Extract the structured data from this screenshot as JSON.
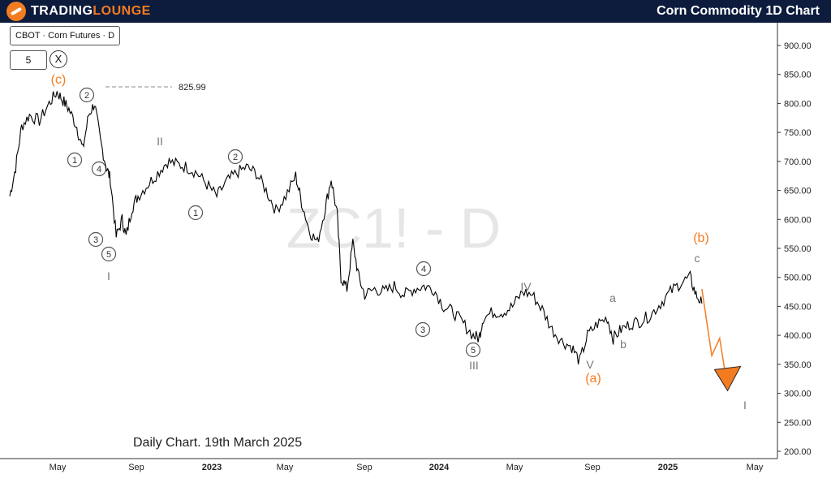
{
  "header": {
    "brand_part1": "TRADING",
    "brand_part2": "LOUNGE",
    "title": "Corn Commodity 1D Chart"
  },
  "legend": {
    "symbol": "CBOT · Corn Futures · D",
    "interval": "5",
    "close_icon": "close-icon"
  },
  "footnote": "Daily Chart. 19th March 2025",
  "colors": {
    "header_bg": "#0d1c3d",
    "accent": "#f47c20",
    "wave_label": "#777777",
    "price": "#000000"
  },
  "chart_data": {
    "type": "line",
    "title": "",
    "watermark": "ZC1! - D",
    "xlabel": "",
    "ylabel": "",
    "ylim": [
      180,
      950
    ],
    "x_ticks": [
      "May",
      "Sep",
      "2023",
      "May",
      "Sep",
      "2024",
      "May",
      "Sep",
      "2025",
      "May"
    ],
    "y_ticks": [
      "900.00",
      "850.00",
      "800.00",
      "750.00",
      "700.00",
      "650.00",
      "600.00",
      "550.00",
      "500.00",
      "450.00",
      "400.00",
      "350.00",
      "300.00",
      "250.00",
      "200.00"
    ],
    "series": [
      {
        "values": [
          [
            0,
            640
          ],
          [
            0.3,
            690
          ],
          [
            0.6,
            760
          ],
          [
            1,
            780
          ],
          [
            1.5,
            770
          ],
          [
            2,
            800
          ],
          [
            2.4,
            820
          ],
          [
            2.7,
            805
          ],
          [
            3,
            790
          ],
          [
            3.4,
            760
          ],
          [
            3.7,
            720
          ],
          [
            4,
            780
          ],
          [
            4.3,
            800
          ],
          [
            4.6,
            735
          ],
          [
            4.9,
            690
          ],
          [
            5.1,
            670
          ],
          [
            5.4,
            570
          ],
          [
            5.7,
            600
          ],
          [
            5.9,
            570
          ],
          [
            6.2,
            620
          ],
          [
            6.5,
            640
          ],
          [
            7,
            660
          ],
          [
            7.5,
            680
          ],
          [
            8,
            700
          ],
          [
            8.5,
            695
          ],
          [
            9,
            690
          ],
          [
            9.5,
            680
          ],
          [
            10,
            660
          ],
          [
            10.5,
            640
          ],
          [
            11,
            665
          ],
          [
            11.5,
            680
          ],
          [
            12,
            690
          ],
          [
            12.5,
            680
          ],
          [
            13,
            650
          ],
          [
            13.5,
            615
          ],
          [
            14,
            640
          ],
          [
            14.5,
            675
          ],
          [
            14.8,
            630
          ],
          [
            15.2,
            580
          ],
          [
            15.6,
            560
          ],
          [
            16,
            620
          ],
          [
            16.3,
            670
          ],
          [
            16.6,
            610
          ],
          [
            16.8,
            500
          ],
          [
            17.1,
            480
          ],
          [
            17.4,
            560
          ],
          [
            17.7,
            500
          ],
          [
            18,
            470
          ],
          [
            18.5,
            480
          ],
          [
            19,
            475
          ],
          [
            19.5,
            485
          ],
          [
            20,
            470
          ],
          [
            20.5,
            480
          ],
          [
            21,
            485
          ],
          [
            21.5,
            480
          ],
          [
            22,
            450
          ],
          [
            22.5,
            440
          ],
          [
            23,
            420
          ],
          [
            23.5,
            400
          ],
          [
            23.8,
            395
          ],
          [
            24,
            430
          ],
          [
            24.5,
            440
          ],
          [
            25,
            440
          ],
          [
            25.5,
            450
          ],
          [
            26,
            475
          ],
          [
            26.5,
            470
          ],
          [
            27,
            445
          ],
          [
            27.5,
            410
          ],
          [
            28,
            390
          ],
          [
            28.5,
            380
          ],
          [
            28.9,
            355
          ],
          [
            29.3,
            400
          ],
          [
            29.8,
            420
          ],
          [
            30.3,
            430
          ],
          [
            30.6,
            395
          ],
          [
            31,
            410
          ],
          [
            31.5,
            420
          ],
          [
            32,
            425
          ],
          [
            32.5,
            435
          ],
          [
            33,
            455
          ],
          [
            33.5,
            475
          ],
          [
            34,
            490
          ],
          [
            34.5,
            500
          ],
          [
            34.8,
            470
          ],
          [
            35.1,
            455
          ]
        ]
      }
    ],
    "projection": [
      [
        35.1,
        480
      ],
      [
        35.6,
        365
      ],
      [
        36,
        395
      ],
      [
        36.4,
        310
      ]
    ],
    "annotations": {
      "high_price": "825.99",
      "orange_labels": [
        "(c)",
        "(a)",
        "(b)"
      ],
      "gray_labels": [
        "I",
        "II",
        "III",
        "IV",
        "V",
        "a",
        "b",
        "c",
        "I"
      ],
      "circled_labels": [
        "2",
        "1",
        "4",
        "3",
        "5",
        "2",
        "1",
        "4",
        "3",
        "5"
      ]
    }
  }
}
